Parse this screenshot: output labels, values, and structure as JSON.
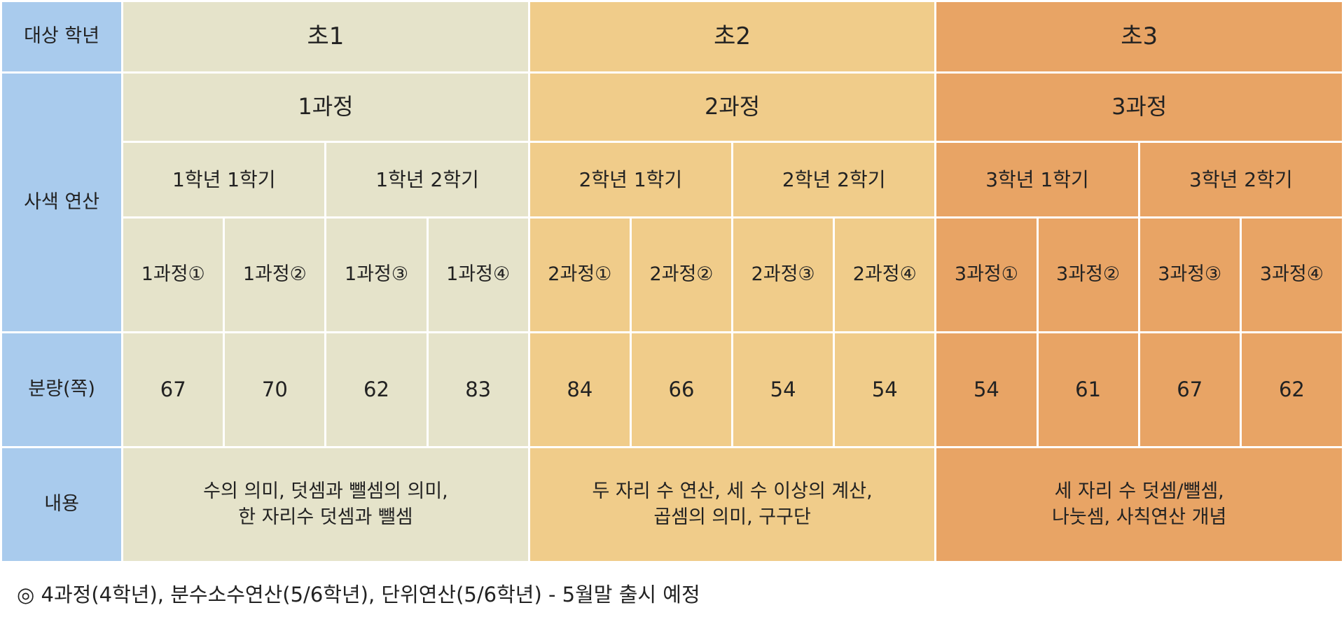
{
  "header_labels": {
    "grade": "대상 학년",
    "course": "사색 연산",
    "pages": "분량(쪽)",
    "content": "내용"
  },
  "grades": [
    "초1",
    "초2",
    "초3"
  ],
  "courses": [
    "1과정",
    "2과정",
    "3과정"
  ],
  "semesters": [
    "1학년 1학기",
    "1학년 2학기",
    "2학년 1학기",
    "2학년 2학기",
    "3학년 1학기",
    "3학년 2학기"
  ],
  "subcourses": [
    "1과정①",
    "1과정②",
    "1과정③",
    "1과정④",
    "2과정①",
    "2과정②",
    "2과정③",
    "2과정④",
    "3과정①",
    "3과정②",
    "3과정③",
    "3과정④"
  ],
  "pages": [
    "67",
    "70",
    "62",
    "83",
    "84",
    "66",
    "54",
    "54",
    "54",
    "61",
    "67",
    "62"
  ],
  "contents": [
    [
      "수의 의미, 덧셈과 뺄셈의 의미,",
      "한 자리수 덧셈과 뺄셈"
    ],
    [
      "두 자리 수 연산, 세 수 이상의 계산,",
      "곱셈의 의미, 구구단"
    ],
    [
      "세 자리 수 덧셈/뺄셈,",
      "나눗셈, 사칙연산 개념"
    ]
  ],
  "footnote": "◎ 4과정(4학년), 분수소수연산(5/6학년), 단위연산(5/6학년) - 5월말 출시 예정",
  "colors": {
    "header": "#a9cbed",
    "grade1": "#e5e3ca",
    "grade2": "#f0cc8a",
    "grade3": "#e8a465"
  }
}
